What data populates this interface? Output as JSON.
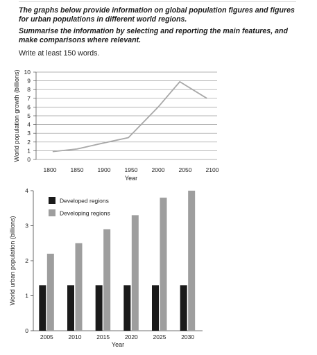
{
  "prompt": {
    "task_line1": "The graphs below provide information on global population figures and figures for urban populations in different world regions.",
    "task_line2": "Summarise the information by selecting and reporting the main features, and make comparisons where relevant.",
    "instruction": "Write at least 150 words."
  },
  "chart_data": [
    {
      "type": "line",
      "title": "",
      "xlabel": "Year",
      "ylabel": "World population growth (billions)",
      "x_ticks": [
        1800,
        1850,
        1900,
        1950,
        2000,
        2050,
        2100
      ],
      "y_ticks": [
        0,
        1,
        2,
        3,
        4,
        5,
        6,
        7,
        8,
        9,
        10
      ],
      "xlim": [
        1800,
        2100
      ],
      "ylim": [
        0,
        10
      ],
      "grid": true,
      "series": [
        {
          "color": "#a8a8a8",
          "x": [
            1805,
            1850,
            1900,
            1945,
            2000,
            2040,
            2090
          ],
          "y": [
            0.9,
            1.2,
            1.9,
            2.5,
            6.0,
            8.9,
            7.0
          ]
        }
      ]
    },
    {
      "type": "bar",
      "title": "",
      "xlabel": "Year",
      "ylabel": "World urban population (billions)",
      "categories": [
        "2005",
        "2010",
        "2015",
        "2020",
        "2025",
        "2030"
      ],
      "y_ticks": [
        0,
        1,
        2,
        3,
        4
      ],
      "ylim": [
        0,
        4
      ],
      "legend_position": "top-left",
      "series": [
        {
          "name": "Developed regions",
          "color": "#1a1a1a",
          "values": [
            1.3,
            1.3,
            1.3,
            1.3,
            1.3,
            1.3
          ]
        },
        {
          "name": "Developing regions",
          "color": "#9e9e9e",
          "values": [
            2.2,
            2.5,
            2.9,
            3.3,
            3.8,
            4.0
          ]
        }
      ]
    }
  ]
}
